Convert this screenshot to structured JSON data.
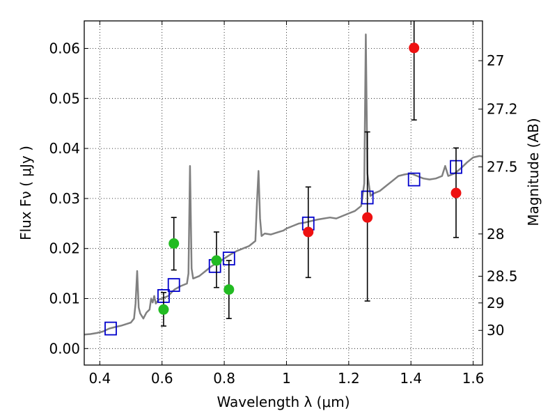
{
  "chart_data": {
    "type": "scatter",
    "xlabel": "Wavelength  λ (μm)",
    "ylabel": "Flux  Fν  ( μJy )",
    "ylabel_right": "Magnitude (AB)",
    "xlim": [
      0.35,
      1.63
    ],
    "ylim": [
      -0.0033,
      0.0655
    ],
    "grid": true,
    "x_ticks": [
      {
        "value": 0.4,
        "label": "0.4"
      },
      {
        "value": 0.6,
        "label": "0.6"
      },
      {
        "value": 0.8,
        "label": "0.8"
      },
      {
        "value": 1.0,
        "label": "1"
      },
      {
        "value": 1.2,
        "label": "1.2"
      },
      {
        "value": 1.4,
        "label": "1.4"
      },
      {
        "value": 1.6,
        "label": "1.6"
      }
    ],
    "y_ticks": [
      {
        "value": 0.0,
        "label": "0.00"
      },
      {
        "value": 0.01,
        "label": "0.01"
      },
      {
        "value": 0.02,
        "label": "0.02"
      },
      {
        "value": 0.03,
        "label": "0.03"
      },
      {
        "value": 0.04,
        "label": "0.04"
      },
      {
        "value": 0.05,
        "label": "0.05"
      },
      {
        "value": 0.06,
        "label": "0.06"
      }
    ],
    "right_ticks": [
      {
        "value": 27,
        "label": "27"
      },
      {
        "value": 27.2,
        "label": "27.2"
      },
      {
        "value": 27.5,
        "label": "27.5"
      },
      {
        "value": 28,
        "label": "28"
      },
      {
        "value": 28.5,
        "label": "28.5"
      },
      {
        "value": 29,
        "label": "29"
      },
      {
        "value": 30,
        "label": "30"
      }
    ],
    "series": [
      {
        "marker": "line",
        "color": "#808080",
        "points": [
          [
            0.35,
            0.0028
          ],
          [
            0.37,
            0.0029
          ],
          [
            0.39,
            0.0031
          ],
          [
            0.41,
            0.0034
          ],
          [
            0.43,
            0.004
          ],
          [
            0.45,
            0.0043
          ],
          [
            0.47,
            0.0046
          ],
          [
            0.49,
            0.005
          ],
          [
            0.5,
            0.0052
          ],
          [
            0.51,
            0.006
          ],
          [
            0.515,
            0.009
          ],
          [
            0.52,
            0.0155
          ],
          [
            0.525,
            0.0082
          ],
          [
            0.53,
            0.007
          ],
          [
            0.54,
            0.006
          ],
          [
            0.55,
            0.0072
          ],
          [
            0.56,
            0.0078
          ],
          [
            0.565,
            0.01
          ],
          [
            0.57,
            0.0092
          ],
          [
            0.575,
            0.0105
          ],
          [
            0.58,
            0.009
          ],
          [
            0.59,
            0.0098
          ],
          [
            0.6,
            0.01
          ],
          [
            0.62,
            0.0105
          ],
          [
            0.63,
            0.0112
          ],
          [
            0.64,
            0.0118
          ],
          [
            0.66,
            0.0125
          ],
          [
            0.68,
            0.013
          ],
          [
            0.685,
            0.015
          ],
          [
            0.69,
            0.0365
          ],
          [
            0.695,
            0.016
          ],
          [
            0.7,
            0.014
          ],
          [
            0.72,
            0.0145
          ],
          [
            0.74,
            0.0155
          ],
          [
            0.76,
            0.0165
          ],
          [
            0.78,
            0.0172
          ],
          [
            0.8,
            0.018
          ],
          [
            0.82,
            0.0188
          ],
          [
            0.84,
            0.0195
          ],
          [
            0.86,
            0.02
          ],
          [
            0.88,
            0.0205
          ],
          [
            0.9,
            0.0215
          ],
          [
            0.905,
            0.029
          ],
          [
            0.91,
            0.0355
          ],
          [
            0.915,
            0.026
          ],
          [
            0.92,
            0.0225
          ],
          [
            0.93,
            0.023
          ],
          [
            0.95,
            0.0228
          ],
          [
            0.97,
            0.0232
          ],
          [
            0.99,
            0.0236
          ],
          [
            1.0,
            0.024
          ],
          [
            1.02,
            0.0245
          ],
          [
            1.04,
            0.025
          ],
          [
            1.06,
            0.0252
          ],
          [
            1.08,
            0.0255
          ],
          [
            1.1,
            0.0258
          ],
          [
            1.12,
            0.026
          ],
          [
            1.14,
            0.0262
          ],
          [
            1.16,
            0.026
          ],
          [
            1.18,
            0.0265
          ],
          [
            1.2,
            0.027
          ],
          [
            1.22,
            0.0275
          ],
          [
            1.24,
            0.0285
          ],
          [
            1.25,
            0.033
          ],
          [
            1.255,
            0.0628
          ],
          [
            1.26,
            0.035
          ],
          [
            1.27,
            0.0305
          ],
          [
            1.28,
            0.031
          ],
          [
            1.3,
            0.0315
          ],
          [
            1.32,
            0.0325
          ],
          [
            1.34,
            0.0335
          ],
          [
            1.36,
            0.0345
          ],
          [
            1.38,
            0.0348
          ],
          [
            1.4,
            0.035
          ],
          [
            1.42,
            0.0345
          ],
          [
            1.44,
            0.034
          ],
          [
            1.46,
            0.0338
          ],
          [
            1.48,
            0.034
          ],
          [
            1.5,
            0.0345
          ],
          [
            1.51,
            0.0365
          ],
          [
            1.52,
            0.0345
          ],
          [
            1.54,
            0.035
          ],
          [
            1.56,
            0.036
          ],
          [
            1.58,
            0.0372
          ],
          [
            1.6,
            0.0382
          ],
          [
            1.62,
            0.0385
          ],
          [
            1.63,
            0.0384
          ]
        ]
      },
      {
        "marker": "square",
        "color": "#0000cc",
        "points": [
          [
            0.435,
            0.004
          ],
          [
            0.605,
            0.0105
          ],
          [
            0.638,
            0.0127
          ],
          [
            0.77,
            0.0165
          ],
          [
            0.815,
            0.018
          ],
          [
            1.07,
            0.025
          ],
          [
            1.26,
            0.0302
          ],
          [
            1.41,
            0.0338
          ],
          [
            1.545,
            0.0363
          ]
        ]
      },
      {
        "marker": "circle",
        "color": "#22bb22",
        "points": [
          {
            "x": 0.605,
            "y": 0.0078,
            "err": [
              0.0045,
              0.0112
            ]
          },
          {
            "x": 0.638,
            "y": 0.021,
            "err": [
              0.0157,
              0.0262
            ]
          },
          {
            "x": 0.775,
            "y": 0.0176,
            "err": [
              0.0122,
              0.0233
            ]
          },
          {
            "x": 0.815,
            "y": 0.0118,
            "err": [
              0.006,
              0.0176
            ]
          }
        ]
      },
      {
        "marker": "circle",
        "color": "#ee1111",
        "points": [
          {
            "x": 1.07,
            "y": 0.0233,
            "err": [
              0.0142,
              0.0323
            ]
          },
          {
            "x": 1.26,
            "y": 0.0262,
            "err": [
              0.0095,
              0.0433
            ]
          },
          {
            "x": 1.41,
            "y": 0.0601,
            "err": [
              0.0457,
              0.066
            ]
          },
          {
            "x": 1.545,
            "y": 0.0311,
            "err": [
              0.0222,
              0.0401
            ]
          }
        ]
      }
    ]
  }
}
